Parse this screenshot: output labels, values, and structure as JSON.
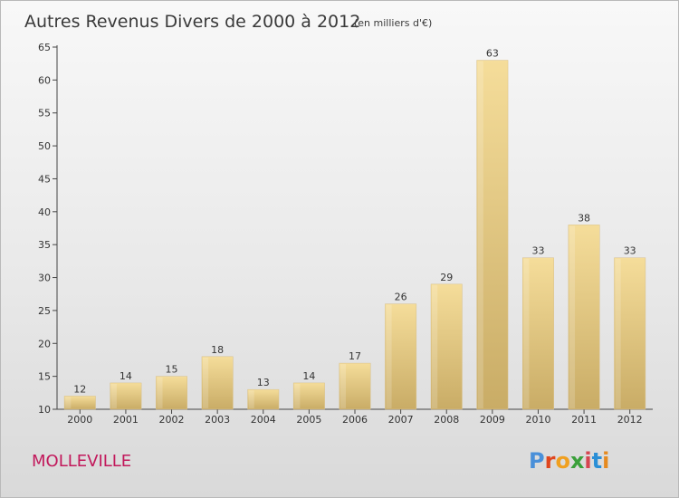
{
  "title": "Autres Revenus Divers de 2000 à 2012",
  "unit": "(en milliers d'€)",
  "commune": "MOLLEVILLE",
  "brand": "Proxiti",
  "colors": {
    "bar_light": "#f5dd9a",
    "bar_dark": "#c9ac66",
    "axis": "#444444",
    "commune": "#c2185b",
    "brand_letters": [
      "#4a90d9",
      "#e0461e",
      "#f0a020",
      "#3aa03a",
      "#d64550",
      "#2b8fd6",
      "#e68a1f"
    ]
  },
  "chart_data": {
    "type": "bar",
    "title": "Autres Revenus Divers de 2000 à 2012",
    "categories": [
      "2000",
      "2001",
      "2002",
      "2003",
      "2004",
      "2005",
      "2006",
      "2007",
      "2008",
      "2009",
      "2010",
      "2011",
      "2012"
    ],
    "values": [
      12,
      14,
      15,
      18,
      13,
      14,
      17,
      26,
      29,
      63,
      33,
      38,
      33
    ],
    "ylim": [
      10,
      65
    ],
    "yticks": [
      10,
      15,
      20,
      25,
      30,
      35,
      40,
      45,
      50,
      55,
      60,
      65
    ],
    "xlabel": "",
    "ylabel": "",
    "grid": false,
    "data_labels": true
  }
}
